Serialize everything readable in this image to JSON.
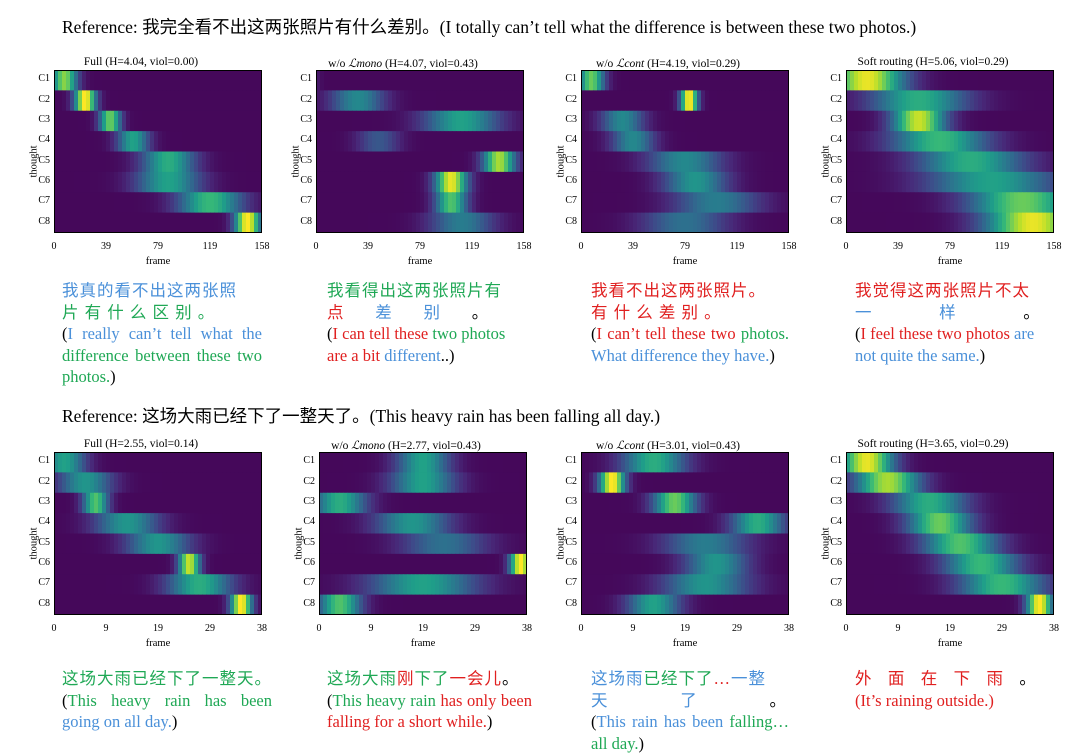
{
  "colors": {
    "green": "#1fa855",
    "blue": "#4a90d9",
    "red": "#e02020"
  },
  "example1": {
    "reference_label": "Reference:",
    "reference_zh": "我完全看不出这两张照片有什么差别。",
    "reference_en": "(I totally can’t tell what the difference is between these two photos.)",
    "panels": [
      {
        "title": "Full  (H=4.04, viol=0.00)",
        "title_pre": "Full  (H=4.04, viol=0.00)",
        "title_sub": "",
        "title_post": ""
      },
      {
        "title_pre": "w/o ",
        "title_sub": "ℒmono",
        "title_post": " (H=4.07, viol=0.43)"
      },
      {
        "title_pre": "w/o ",
        "title_sub": "ℒcont",
        "title_post": " (H=4.19, viol=0.29)"
      },
      {
        "title_pre": "Soft routing  (H=5.06, viol=0.29)",
        "title_sub": "",
        "title_post": ""
      }
    ],
    "xticks": [
      "0",
      "39",
      "79",
      "119",
      "158"
    ],
    "outputs": [
      {
        "zh1": "我真的看不出这两张照",
        "zh2": "片 有 什 么 区 别 。",
        "en": "(I really can’t tell what the difference between these two photos.)"
      },
      {
        "zh1": "我看得出这两张照片有",
        "zh2": "点  差  别  。",
        "en1": "(I can tell these",
        "en2": "two photos",
        "en3": "are a bit",
        "en4": "different",
        "en5": "..)"
      },
      {
        "zh1": "我看不出这两张照片。",
        "zh2": "有 什 么 差 别 。",
        "en": "(I can’t tell these two photos. What difference they have.)"
      },
      {
        "zh1": "我觉得这两张照片不太",
        "zh2": "一  样  。",
        "en1": "(I feel these two photos",
        "en2": "are not quite the same.",
        "en3": ")"
      }
    ]
  },
  "example2": {
    "reference_label": "Reference:",
    "reference_zh": "这场大雨已经下了一整天了。",
    "reference_en": "(This heavy rain has been falling all day.)",
    "panels": [
      {
        "title_pre": "Full  (H=2.55, viol=0.14)",
        "title_sub": "",
        "title_post": ""
      },
      {
        "title_pre": "w/o ",
        "title_sub": "ℒmono",
        "title_post": " (H=2.77, viol=0.43)"
      },
      {
        "title_pre": "w/o ",
        "title_sub": "ℒcont",
        "title_post": "  (H=3.01, viol=0.43)"
      },
      {
        "title_pre": "Soft routing  (H=3.65, viol=0.29)",
        "title_sub": "",
        "title_post": ""
      }
    ],
    "xticks": [
      "0",
      "9",
      "19",
      "29",
      "38"
    ],
    "outputs": [
      {
        "zh": "这场大雨已经下了一整天。",
        "en1": "(This heavy rain has been",
        "en2": "going on all day.",
        "en3": ")"
      },
      {
        "zh1": "这场大雨",
        "zh2": "刚",
        "zh3": "下了",
        "zh4": "一会儿",
        "zh5": "。",
        "en1": "(This heavy rain",
        "en2": "has only been falling for a short while.",
        "en3": ")"
      },
      {
        "zh1": "这场雨",
        "zh2": "已经下了",
        "zh3": "…",
        "zh4": "一整",
        "zh5": "天  了  。",
        "en1": "(This rain has been",
        "en2": "falling… all day.",
        "en3": ")"
      },
      {
        "zh": "外  面  在  下  雨  。",
        "en": "(It’s raining outside.)"
      }
    ]
  },
  "axis": {
    "ylabel": "thought",
    "xlabel": "frame",
    "yticks": [
      "C1",
      "C2",
      "C3",
      "C4",
      "C5",
      "C6",
      "C7",
      "C8"
    ]
  }
}
